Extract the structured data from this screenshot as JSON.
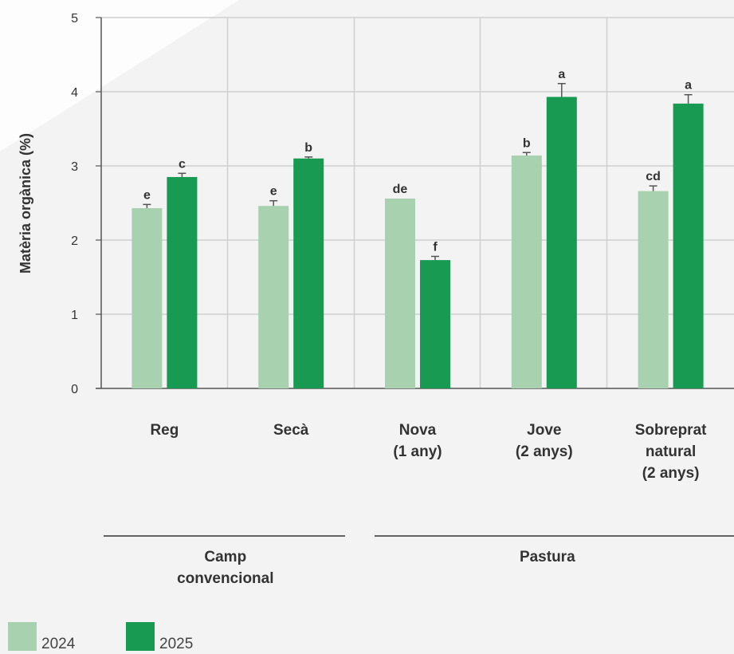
{
  "colors": {
    "y2024": "#a8d1b0",
    "y2025": "#189a52",
    "grid": "#cfcfcf",
    "axis": "#555555",
    "text": "#333333"
  },
  "chart_data": {
    "type": "bar",
    "ylabel": "Matèria orgànica (%)",
    "ylim": [
      0,
      5
    ],
    "yticks": [
      "0",
      "1",
      "2",
      "3",
      "4",
      "5"
    ],
    "categories": [
      [
        "Reg"
      ],
      [
        "Secà"
      ],
      [
        "Nova",
        "(1 any)"
      ],
      [
        "Jove",
        "(2 anys)"
      ],
      [
        "Sobreprat",
        "natural",
        "(2 anys)"
      ]
    ],
    "series": [
      {
        "name": "2024",
        "values": [
          2.43,
          2.46,
          2.56,
          3.14,
          2.66
        ],
        "errors": [
          0.05,
          0.07,
          0.0,
          0.04,
          0.07
        ],
        "letters": [
          "e",
          "e",
          "de",
          "b",
          "cd"
        ]
      },
      {
        "name": "2025",
        "values": [
          2.85,
          3.1,
          1.73,
          3.93,
          3.84
        ],
        "errors": [
          0.05,
          0.02,
          0.05,
          0.18,
          0.12
        ],
        "letters": [
          "c",
          "b",
          "f",
          "a",
          "a"
        ]
      }
    ],
    "groups": [
      {
        "label": [
          "Camp",
          "convencional"
        ],
        "categories": [
          0,
          1
        ]
      },
      {
        "label": [
          "Pastura"
        ],
        "categories": [
          2,
          3,
          4
        ]
      }
    ],
    "grid": true
  }
}
